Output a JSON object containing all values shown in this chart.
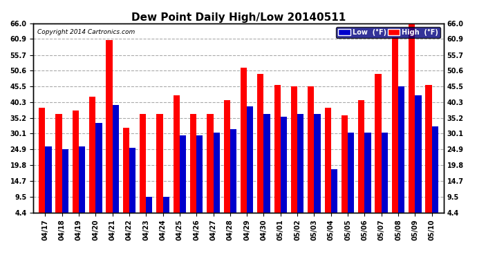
{
  "title": "Dew Point Daily High/Low 20140511",
  "copyright": "Copyright 2014 Cartronics.com",
  "dates": [
    "04/17",
    "04/18",
    "04/19",
    "04/20",
    "04/21",
    "04/22",
    "04/23",
    "04/24",
    "04/25",
    "04/26",
    "04/27",
    "04/28",
    "04/29",
    "04/30",
    "05/01",
    "05/02",
    "05/03",
    "05/04",
    "05/05",
    "05/06",
    "05/07",
    "05/08",
    "05/09",
    "05/10"
  ],
  "high": [
    38.5,
    36.5,
    37.5,
    42.0,
    60.5,
    32.0,
    36.5,
    36.5,
    42.5,
    36.5,
    36.5,
    41.0,
    51.5,
    49.5,
    46.0,
    45.5,
    45.5,
    38.5,
    36.0,
    41.0,
    49.5,
    61.5,
    66.0,
    46.0
  ],
  "low": [
    26.0,
    25.0,
    26.0,
    33.5,
    39.5,
    25.5,
    9.5,
    9.5,
    29.5,
    29.5,
    30.5,
    31.5,
    39.0,
    36.5,
    35.5,
    36.5,
    36.5,
    18.5,
    30.5,
    30.5,
    30.5,
    45.5,
    42.5,
    32.5
  ],
  "high_color": "#ff0000",
  "low_color": "#0000cc",
  "bg_color": "#ffffff",
  "grid_color": "#aaaaaa",
  "ylim": [
    4.4,
    66.0
  ],
  "yticks": [
    4.4,
    9.5,
    14.7,
    19.8,
    24.9,
    30.1,
    35.2,
    40.3,
    45.5,
    50.6,
    55.7,
    60.9,
    66.0
  ],
  "bar_width": 0.38,
  "legend_low_label": "Low  (°F)",
  "legend_high_label": "High  (°F)"
}
